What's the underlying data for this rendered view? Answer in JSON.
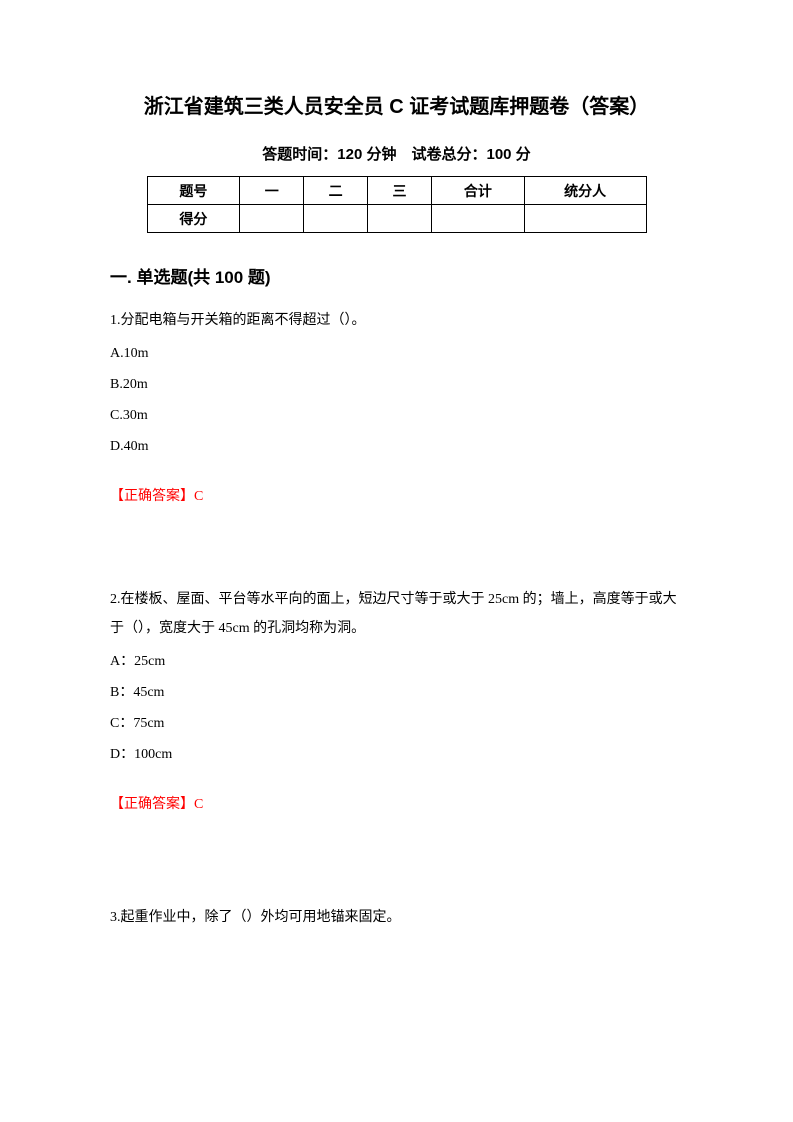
{
  "title": "浙江省建筑三类人员安全员 C 证考试题库押题卷（答案）",
  "subtitle": "答题时间：120 分钟　试卷总分：100 分",
  "table": {
    "headers": [
      "题号",
      "一",
      "二",
      "三",
      "合计",
      "统分人"
    ],
    "row_label": "得分"
  },
  "section_title": "一. 单选题(共 100 题)",
  "questions": [
    {
      "text": "1.分配电箱与开关箱的距离不得超过（）。",
      "options": [
        "A.10m",
        "B.20m",
        "C.30m",
        "D.40m"
      ],
      "answer": "【正确答案】C"
    },
    {
      "text": "2.在楼板、屋面、平台等水平向的面上，短边尺寸等于或大于 25cm 的；墙上，高度等于或大于（），宽度大于 45cm 的孔洞均称为洞。",
      "options": [
        "A：25cm",
        "B：45cm",
        "C：75cm",
        "D：100cm"
      ],
      "answer": "【正确答案】C"
    },
    {
      "text": "3.起重作业中，除了（）外均可用地锚来固定。",
      "options": [],
      "answer": ""
    }
  ],
  "colors": {
    "text": "#000000",
    "answer": "#ff0000",
    "background": "#ffffff"
  }
}
